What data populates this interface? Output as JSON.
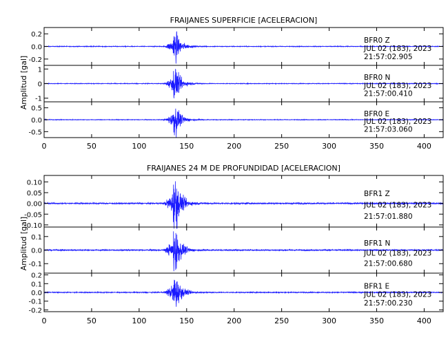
{
  "chart_data": [
    {
      "type": "line",
      "title": "FRAIJANES SUPERFICIE [ACELERACION]",
      "ylabel": "Amplitud [gal]",
      "xlabel": "",
      "xlim": [
        0,
        420
      ],
      "xticks": [
        0,
        50,
        100,
        150,
        200,
        250,
        300,
        350,
        400
      ],
      "grid": false,
      "panels": [
        {
          "ylim": [
            -0.3,
            0.3
          ],
          "yticks": [
            -0.2,
            0.0,
            0.2
          ],
          "ytick_labels": [
            "-0.2",
            "0.0",
            "0.2"
          ],
          "station": "BFR0   Z",
          "date": "JUL 02 (183), 2023",
          "time": "21:57:02.905",
          "event_start": 125,
          "peak_time": 138,
          "peak_amplitude": 0.22,
          "noise_amplitude": 0.005
        },
        {
          "ylim": [
            -1.25,
            1.25
          ],
          "yticks": [
            -1,
            0,
            1
          ],
          "ytick_labels": [
            "-1",
            "0",
            "1"
          ],
          "station": "BFR0   N",
          "date": "JUL 02 (183), 2023",
          "time": "21:57:00.410",
          "event_start": 125,
          "peak_time": 138,
          "peak_amplitude": 1.0,
          "noise_amplitude": 0.02
        },
        {
          "ylim": [
            -0.75,
            0.75
          ],
          "yticks": [
            -0.5,
            0.0,
            0.5
          ],
          "ytick_labels": [
            "-0.5",
            "0.0",
            "0.5"
          ],
          "station": "BFR0   E",
          "date": "JUL 02 (183), 2023",
          "time": "21:57:03.060",
          "event_start": 125,
          "peak_time": 138,
          "peak_amplitude": 0.6,
          "noise_amplitude": 0.012
        }
      ]
    },
    {
      "type": "line",
      "title": "FRAIJANES 24 M DE PROFUNDIDAD [ACELERACION]",
      "ylabel": "Amplitud [gal]",
      "xlabel": "",
      "xlim": [
        0,
        420
      ],
      "xticks": [
        0,
        50,
        100,
        150,
        200,
        250,
        300,
        350,
        400
      ],
      "grid": false,
      "panels": [
        {
          "ylim": [
            -0.11,
            0.13
          ],
          "yticks": [
            -0.1,
            -0.05,
            0.0,
            0.05,
            0.1
          ],
          "ytick_labels": [
            "-0.10",
            "-0.05",
            "0.00",
            "0.05",
            "0.10"
          ],
          "station": "BFR1   Z",
          "date": "JUL 02 (183), 2023",
          "time": "21:57:01.880",
          "event_start": 125,
          "peak_time": 138,
          "peak_amplitude": 0.11,
          "noise_amplitude": 0.003
        },
        {
          "ylim": [
            -0.17,
            0.17
          ],
          "yticks": [
            -0.1,
            0.0,
            0.1
          ],
          "ytick_labels": [
            "-0.1",
            "0.0",
            "0.1"
          ],
          "station": "BFR1   N",
          "date": "JUL 02 (183), 2023",
          "time": "21:57:00.680",
          "event_start": 125,
          "peak_time": 138,
          "peak_amplitude": 0.15,
          "noise_amplitude": 0.004
        },
        {
          "ylim": [
            -0.22,
            0.22
          ],
          "yticks": [
            -0.2,
            -0.1,
            0.0,
            0.1,
            0.2
          ],
          "ytick_labels": [
            "-0.2",
            "-0.1",
            "0.0",
            "0.1",
            "0.2"
          ],
          "station": "BFR1   E",
          "date": "JUL 02 (183), 2023",
          "time": "21:57:00.230",
          "event_start": 125,
          "peak_time": 138,
          "peak_amplitude": 0.19,
          "noise_amplitude": 0.005
        }
      ]
    }
  ],
  "colors": {
    "trace": "#1a1aff",
    "axis": "#000000"
  }
}
